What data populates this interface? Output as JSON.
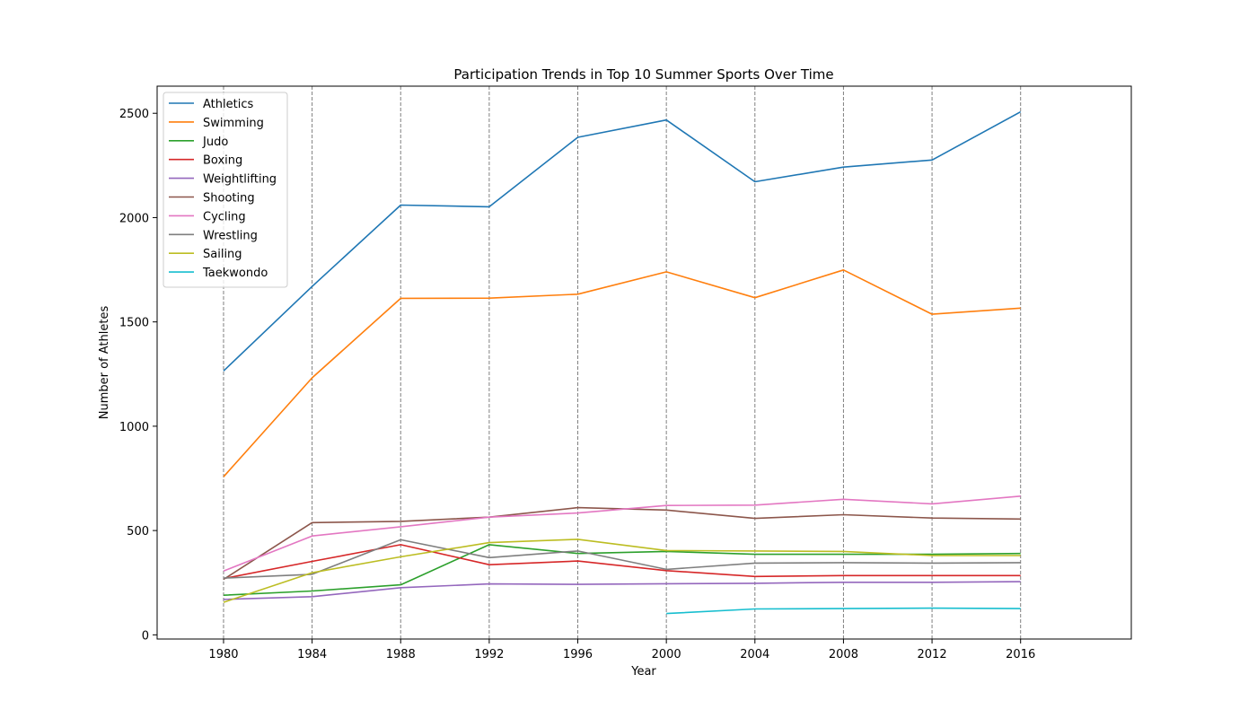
{
  "chart_data": {
    "type": "line",
    "title": "Participation Trends in Top 10 Summer Sports Over Time",
    "xlabel": "Year",
    "ylabel": "Number of Athletes",
    "x": [
      "1980",
      "1984",
      "1988",
      "1992",
      "1996",
      "2000",
      "2004",
      "2008",
      "2012",
      "2016"
    ],
    "xlim": [
      1977,
      2021
    ],
    "ylim": [
      -20,
      2630
    ],
    "yticks": [
      "0",
      "500",
      "1000",
      "1500",
      "2000",
      "2500"
    ],
    "grid": "vertical dashed at each year",
    "legend_position": "upper-left",
    "series": [
      {
        "name": "Athletics",
        "color": "#1f77b4",
        "values": [
          1265,
          1670,
          2060,
          2052,
          2385,
          2468,
          2172,
          2242,
          2276,
          2507
        ]
      },
      {
        "name": "Swimming",
        "color": "#ff7f0e",
        "values": [
          758,
          1232,
          1613,
          1614,
          1633,
          1740,
          1616,
          1749,
          1537,
          1566
        ]
      },
      {
        "name": "Judo",
        "color": "#2ca02c",
        "values": [
          190,
          210,
          240,
          432,
          390,
          400,
          386,
          386,
          386,
          390
        ]
      },
      {
        "name": "Boxing",
        "color": "#d62728",
        "values": [
          270,
          352,
          432,
          336,
          354,
          308,
          280,
          284,
          284,
          284
        ]
      },
      {
        "name": "Weightlifting",
        "color": "#9467bd",
        "values": [
          170,
          183,
          226,
          244,
          242,
          245,
          247,
          252,
          252,
          255
        ]
      },
      {
        "name": "Shooting",
        "color": "#8c564b",
        "values": [
          266,
          538,
          544,
          564,
          610,
          598,
          558,
          576,
          560,
          555
        ]
      },
      {
        "name": "Cycling",
        "color": "#e377c2",
        "values": [
          306,
          474,
          518,
          564,
          584,
          620,
          622,
          650,
          628,
          665
        ]
      },
      {
        "name": "Wrestling",
        "color": "#7f7f7f",
        "values": [
          272,
          290,
          456,
          370,
          402,
          314,
          344,
          346,
          344,
          346
        ]
      },
      {
        "name": "Sailing",
        "color": "#bcbd22",
        "values": [
          156,
          298,
          374,
          442,
          458,
          404,
          402,
          400,
          380,
          380
        ]
      },
      {
        "name": "Taekwondo",
        "color": "#17becf",
        "values": [
          null,
          null,
          null,
          null,
          null,
          102,
          124,
          126,
          128,
          126
        ]
      }
    ]
  }
}
